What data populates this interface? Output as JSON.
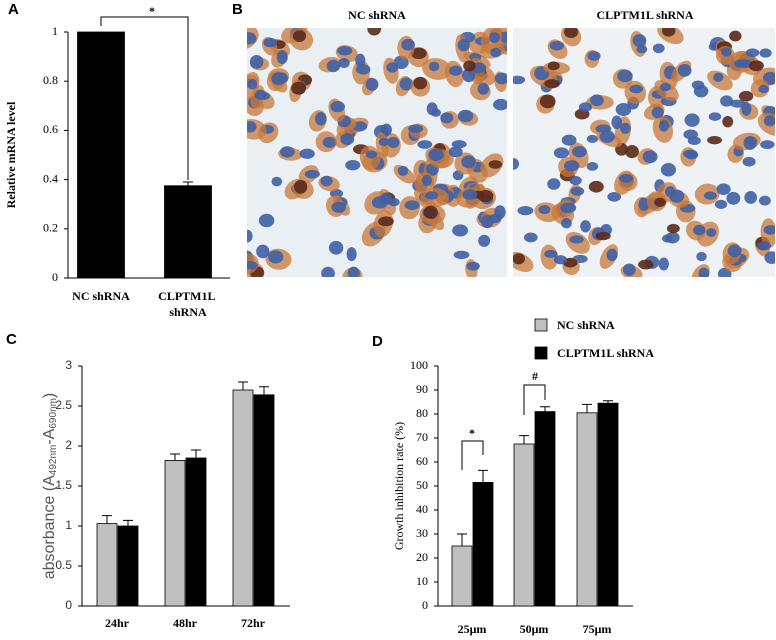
{
  "chart_data": [
    {
      "type": "bar",
      "panel_label": "A",
      "ylabel": "Relative mRNA level",
      "categories": [
        "NC shRNA",
        "CLPTM1L shRNA"
      ],
      "series": [
        {
          "color": "#000000",
          "values": [
            1,
            0.375
          ],
          "errors": [
            null,
            0.015
          ]
        }
      ],
      "ylim": [
        0,
        1
      ],
      "yticks": [
        0,
        0.2,
        0.4,
        0.6,
        0.8,
        1
      ],
      "annotations": [
        {
          "text": "*"
        }
      ]
    },
    {
      "type": "bar",
      "panel_label": "C",
      "ylabel_parts": [
        "absorbance (A",
        "492nm",
        "-A",
        "690nm",
        ")"
      ],
      "categories": [
        "24hr",
        "48hr",
        "72hr"
      ],
      "series": [
        {
          "color": "#c0c0c0",
          "values": [
            1.03,
            1.82,
            2.7
          ],
          "errors": [
            0.1,
            0.08,
            0.1
          ]
        },
        {
          "color": "#000000",
          "values": [
            1.0,
            1.85,
            2.64
          ],
          "errors": [
            0.07,
            0.1,
            0.1
          ]
        }
      ],
      "ylim": [
        0,
        3
      ],
      "yticks": [
        0,
        0.5,
        1,
        1.5,
        2,
        2.5,
        3
      ]
    },
    {
      "type": "bar",
      "panel_label": "D",
      "ylabel": "Growth inhibition rate (%)",
      "categories": [
        "25μm",
        "50μm",
        "75μm"
      ],
      "series": [
        {
          "name": "NC shRNA",
          "color": "#c0c0c0",
          "values": [
            25,
            67.5,
            80.5
          ],
          "errors": [
            5,
            3.5,
            3.5
          ]
        },
        {
          "name": "CLPTM1L shRNA",
          "color": "#000000",
          "values": [
            51.5,
            81,
            84.5
          ],
          "errors": [
            5,
            2,
            1
          ]
        }
      ],
      "ylim": [
        0,
        100
      ],
      "yticks": [
        0,
        10,
        20,
        30,
        40,
        50,
        60,
        70,
        80,
        90,
        100
      ],
      "annotations": [
        {
          "text": "*"
        },
        {
          "text": "#"
        }
      ]
    }
  ],
  "images": {
    "panel_label": "B",
    "titles": [
      "NC shRNA",
      "CLPTM1L shRNA"
    ]
  }
}
